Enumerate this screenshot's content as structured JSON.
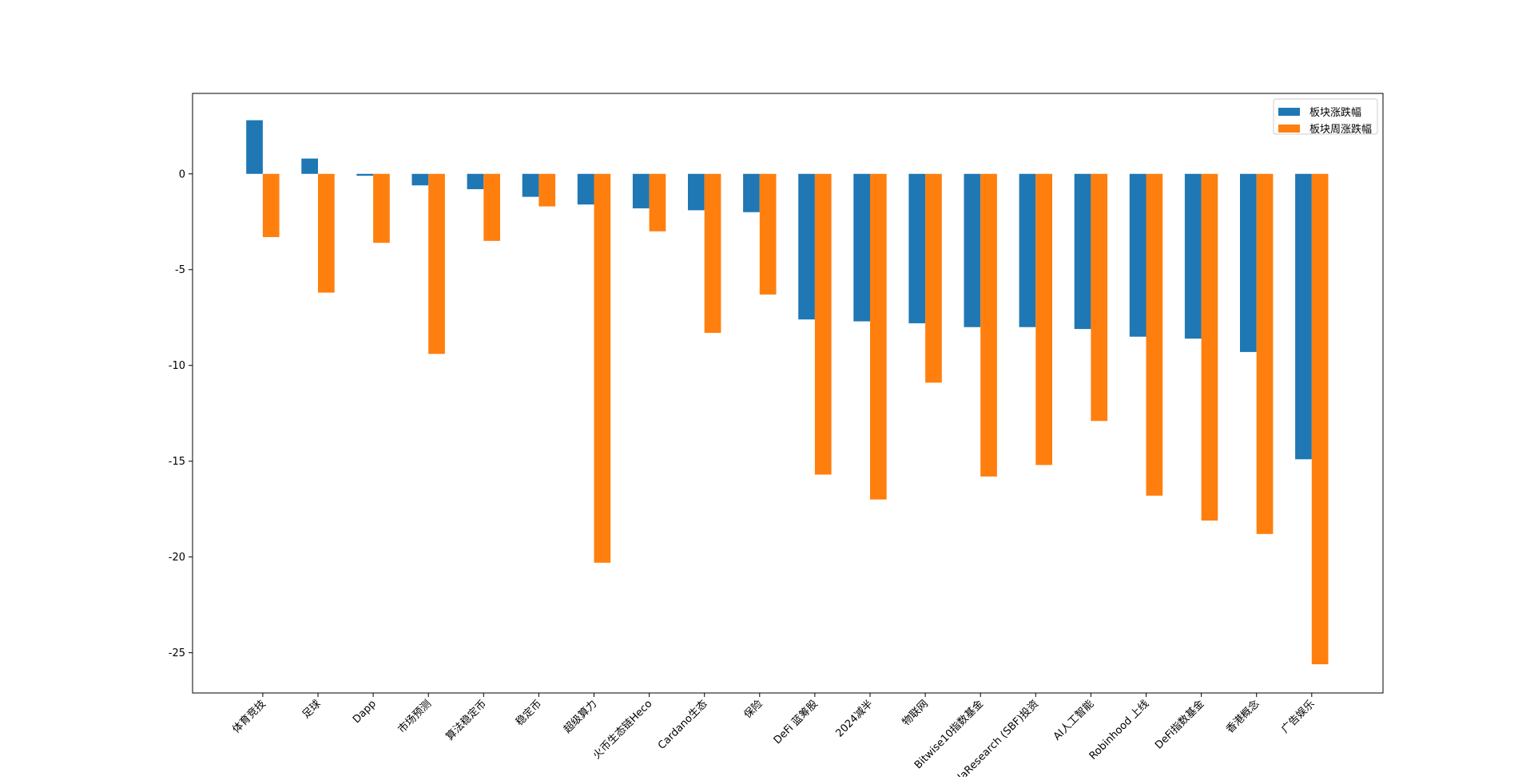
{
  "chart_data": {
    "type": "bar",
    "categories": [
      "体育竞技",
      "足球",
      "Dapp",
      "市场预测",
      "算法稳定币",
      "稳定币",
      "超级算力",
      "火币生态链Heco",
      "Cardano生态",
      "保险",
      "DeFi 蓝筹股",
      "2024减半",
      "物联网",
      "Bitwise10指数基金",
      "AlamedaResearch (SBF)投资",
      "AI人工智能",
      "Robinhood 上线",
      "DeFi指数基金",
      "香港概念",
      "广告娱乐"
    ],
    "series": [
      {
        "name": "板块涨跌幅",
        "color": "#1f77b4",
        "values": [
          2.8,
          0.8,
          -0.1,
          -0.6,
          -0.8,
          -1.2,
          -1.6,
          -1.8,
          -1.9,
          -2.0,
          -7.6,
          -7.7,
          -7.8,
          -8.0,
          -8.0,
          -8.1,
          -8.5,
          -8.6,
          -9.3,
          -14.9
        ]
      },
      {
        "name": "板块周涨跌幅",
        "color": "#ff7f0e",
        "values": [
          -3.3,
          -6.2,
          -3.6,
          -9.4,
          -3.5,
          -1.7,
          -20.3,
          -3.0,
          -8.3,
          -6.3,
          -15.7,
          -17.0,
          -10.9,
          -15.8,
          -15.2,
          -12.9,
          -16.8,
          -18.1,
          -18.8,
          -25.6
        ]
      }
    ],
    "yticks": [
      0,
      -5,
      -10,
      -15,
      -20,
      -25
    ],
    "ylim": [
      -27.1,
      4.2
    ],
    "legend_position": "upper-right",
    "grid": false
  }
}
